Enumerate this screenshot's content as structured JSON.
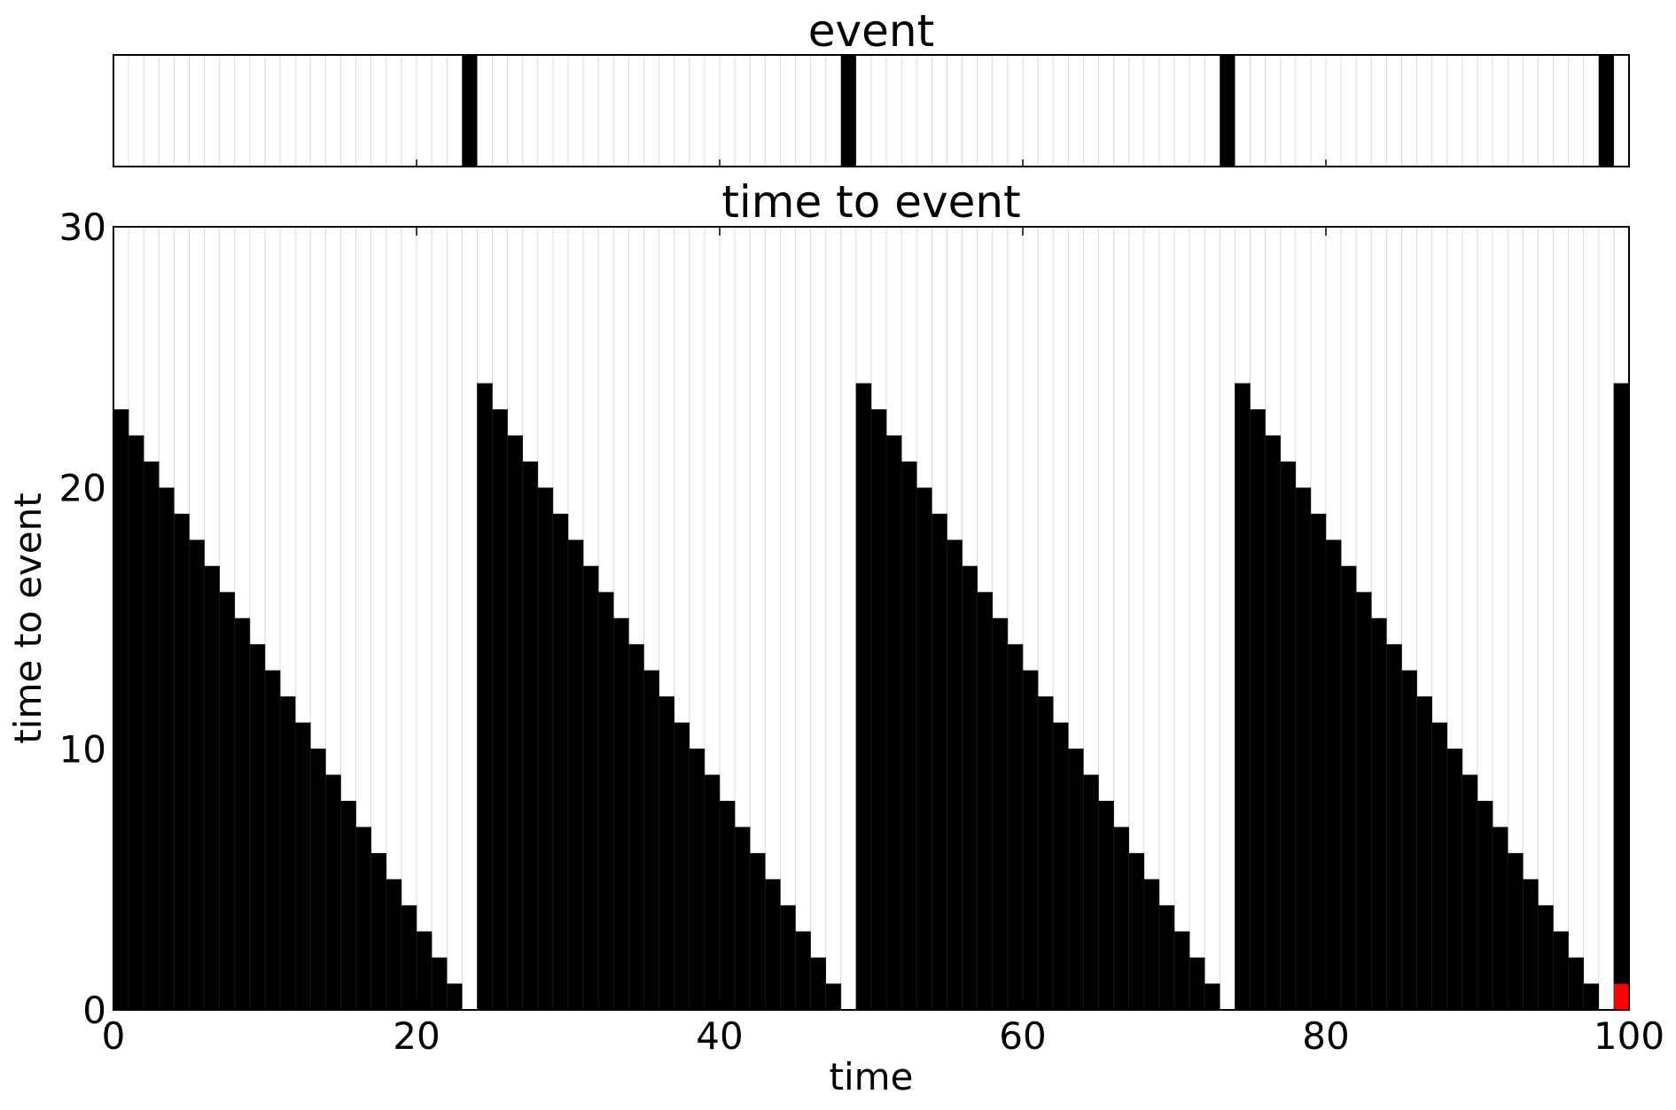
{
  "chart_data": [
    {
      "type": "bar",
      "title": "event",
      "xlabel": "",
      "ylabel": "",
      "xlim": [
        0,
        100
      ],
      "ylim": [
        0,
        1
      ],
      "grid": true,
      "bar_width": 1,
      "x": [
        23,
        48,
        73,
        98
      ],
      "values": [
        1,
        1,
        1,
        1
      ],
      "bar_color": "#000000",
      "grid_color": "#d9d9d9"
    },
    {
      "type": "bar",
      "title": "time to event",
      "xlabel": "time",
      "ylabel": "time to event",
      "xlim": [
        0,
        100
      ],
      "ylim": [
        0,
        30
      ],
      "xticks": [
        0,
        20,
        40,
        60,
        80,
        100
      ],
      "yticks": [
        0,
        10,
        20,
        30
      ],
      "xticklabels": [
        "0",
        "20",
        "40",
        "60",
        "80",
        "100"
      ],
      "yticklabels": [
        "0",
        "10",
        "20",
        "30"
      ],
      "grid": true,
      "bar_width": 1,
      "values": [
        23,
        22,
        21,
        20,
        19,
        18,
        17,
        16,
        15,
        14,
        13,
        12,
        11,
        10,
        9,
        8,
        7,
        6,
        5,
        4,
        3,
        2,
        1,
        0,
        24,
        23,
        22,
        21,
        20,
        19,
        18,
        17,
        16,
        15,
        14,
        13,
        12,
        11,
        10,
        9,
        8,
        7,
        6,
        5,
        4,
        3,
        2,
        1,
        0,
        24,
        23,
        22,
        21,
        20,
        19,
        18,
        17,
        16,
        15,
        14,
        13,
        12,
        11,
        10,
        9,
        8,
        7,
        6,
        5,
        4,
        3,
        2,
        1,
        0,
        24,
        23,
        22,
        21,
        20,
        19,
        18,
        17,
        16,
        15,
        14,
        13,
        12,
        11,
        10,
        9,
        8,
        7,
        6,
        5,
        4,
        3,
        2,
        1,
        0,
        24
      ],
      "highlight": {
        "x": 99,
        "value": 1,
        "color": "#ff0000"
      },
      "bar_color": "#000000",
      "grid_color": "#d9d9d9"
    }
  ]
}
